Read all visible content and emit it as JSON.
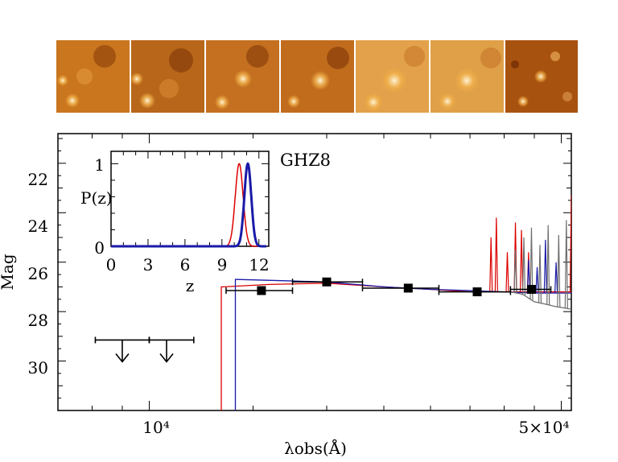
{
  "chart_data": {
    "type": "line",
    "title": "GHZ8",
    "xlabel": "λobs(Å)",
    "ylabel": "Mag",
    "x_scale": "log",
    "xlim": [
      7000,
      52000
    ],
    "ylim": [
      32,
      20.8
    ],
    "x_tick_labels": [
      {
        "value": 10000,
        "label": "10⁴"
      },
      {
        "value": 50000,
        "label": "5×10⁴"
      }
    ],
    "y_ticks": [
      22,
      24,
      26,
      28,
      30
    ],
    "photometry": [
      {
        "wavelength": 15500,
        "mag": 27.15,
        "xerr": [
          13500,
          17500
        ]
      },
      {
        "wavelength": 20000,
        "mag": 26.8,
        "xerr": [
          17500,
          23000
        ]
      },
      {
        "wavelength": 27500,
        "mag": 27.05,
        "xerr": [
          23000,
          31000
        ]
      },
      {
        "wavelength": 36000,
        "mag": 27.2,
        "xerr": [
          31000,
          41000
        ]
      },
      {
        "wavelength": 44500,
        "mag": 27.1,
        "xerr": [
          41000,
          48000
        ]
      }
    ],
    "upper_limits": [
      {
        "wavelength": 9000,
        "mag": 29.15,
        "xerr": [
          8100,
          10000
        ]
      },
      {
        "wavelength": 10700,
        "mag": 29.15,
        "xerr": [
          10000,
          11900
        ]
      }
    ],
    "series": [
      {
        "name": "red model",
        "color": "#dd0000",
        "break_wavelength": 13250,
        "points": [
          [
            13350,
            27.0
          ],
          [
            16000,
            26.9
          ],
          [
            20000,
            26.85
          ],
          [
            25000,
            27.0
          ],
          [
            30000,
            27.1
          ],
          [
            35000,
            27.2
          ],
          [
            40000,
            27.2
          ],
          [
            45000,
            27.2
          ],
          [
            52000,
            27.2
          ]
        ],
        "emission_lines": [
          [
            38000,
            25.0
          ],
          [
            38800,
            24.2
          ],
          [
            40500,
            25.6
          ],
          [
            41800,
            24.4
          ],
          [
            42800,
            24.7
          ],
          [
            44000,
            25.6
          ],
          [
            52000,
            23.3
          ]
        ]
      },
      {
        "name": "blue model",
        "color": "#1a1aa8",
        "break_wavelength": 14000,
        "points": [
          [
            14100,
            26.7
          ],
          [
            17000,
            26.75
          ],
          [
            20000,
            26.8
          ],
          [
            25000,
            27.0
          ],
          [
            30000,
            27.1
          ],
          [
            35000,
            27.15
          ],
          [
            40000,
            27.2
          ],
          [
            45000,
            27.25
          ],
          [
            52000,
            27.25
          ]
        ],
        "emission_lines": [
          [
            44000,
            25.9
          ],
          [
            45500,
            26.2
          ],
          [
            47000,
            25.1
          ],
          [
            49000,
            26.0
          ]
        ]
      },
      {
        "name": "grey model",
        "color": "#6e6e6e",
        "points": [
          [
            41000,
            27.2
          ],
          [
            43000,
            27.3
          ],
          [
            45000,
            27.6
          ],
          [
            47000,
            27.7
          ],
          [
            49000,
            27.8
          ],
          [
            52000,
            27.9
          ]
        ],
        "emission_lines": [
          [
            41800,
            25.5
          ],
          [
            43200,
            25.0
          ],
          [
            44500,
            24.6
          ],
          [
            46000,
            25.3
          ],
          [
            47500,
            24.5
          ],
          [
            49500,
            24.9
          ],
          [
            51000,
            24.3
          ]
        ]
      }
    ],
    "inset": {
      "type": "line",
      "xlabel": "z",
      "ylabel": "P(z)",
      "xlim": [
        0,
        12.8
      ],
      "ylim": [
        0,
        1.15
      ],
      "x_ticks": [
        0,
        3,
        6,
        9,
        12
      ],
      "y_ticks": [
        0,
        1
      ],
      "series": [
        {
          "name": "P(z) red",
          "color": "#dd0000",
          "peak_z": 10.4,
          "sigma": 0.32,
          "peak": 1.0
        },
        {
          "name": "P(z) blue",
          "color": "#1a1aa8",
          "peak_z": 11.1,
          "sigma": 0.28,
          "peak": 1.0
        }
      ]
    }
  }
}
